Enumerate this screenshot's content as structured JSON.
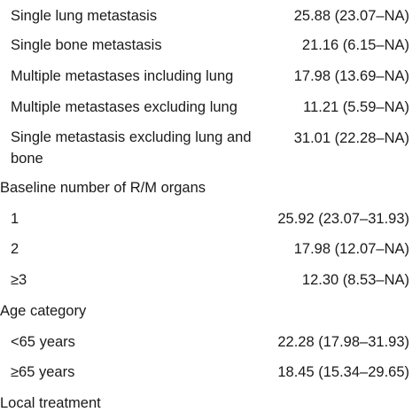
{
  "table": {
    "rows": [
      {
        "type": "sub",
        "label": "Single lung metastasis",
        "value": "25.88 (23.07–NA)"
      },
      {
        "type": "sub",
        "label": "Single bone metastasis",
        "value": "21.16 (6.15–NA)"
      },
      {
        "type": "sub",
        "label": "Multiple metastases including lung",
        "value": "17.98 (13.69–NA)"
      },
      {
        "type": "sub",
        "label": "Multiple metastases excluding lung",
        "value": "11.21 (5.59–NA)"
      },
      {
        "type": "sub",
        "label": "Single metastasis excluding lung and bone",
        "value": "31.01 (22.28–NA)"
      },
      {
        "type": "head",
        "label": "Baseline number of R/M organs",
        "value": ""
      },
      {
        "type": "sub",
        "label": "1",
        "value": "25.92 (23.07–31.93)"
      },
      {
        "type": "sub",
        "label": "2",
        "value": "17.98 (12.07–NA)"
      },
      {
        "type": "sub",
        "label": "≥3",
        "value": "12.30 (8.53–NA)"
      },
      {
        "type": "head",
        "label": "Age category",
        "value": ""
      },
      {
        "type": "sub",
        "label": "<65 years",
        "value": "22.28 (17.98–31.93)"
      },
      {
        "type": "sub",
        "label": "≥65 years",
        "value": "18.45 (15.34–29.65)"
      },
      {
        "type": "head",
        "label": "Local treatment",
        "value": ""
      }
    ]
  }
}
